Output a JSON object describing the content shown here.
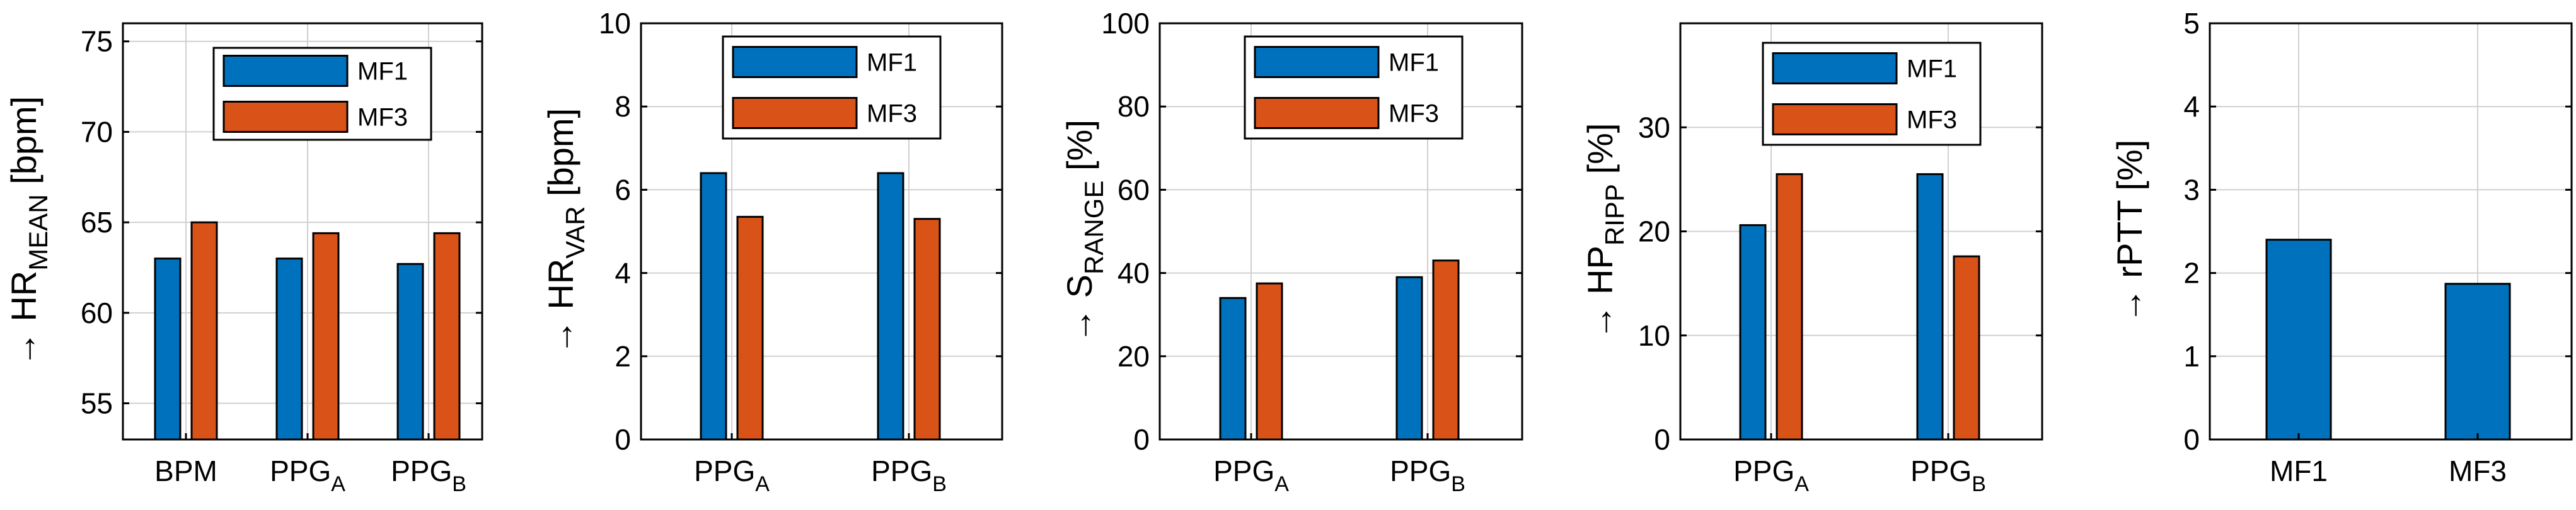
{
  "colors": {
    "MF1": "#0072BD",
    "MF3": "#D95319"
  },
  "chart_data": [
    {
      "type": "bar",
      "ylabel": {
        "prefix": "→ HR",
        "sub": "MEAN",
        "suffix": " [bpm]"
      },
      "ylim": [
        53,
        76
      ],
      "yticks": [
        55,
        60,
        65,
        70,
        75
      ],
      "categories": [
        {
          "main": "BPM",
          "sub": ""
        },
        {
          "main": "PPG",
          "sub": "A"
        },
        {
          "main": "PPG",
          "sub": "B"
        }
      ],
      "series": [
        {
          "name": "MF1",
          "values": [
            63.0,
            63.0,
            62.7
          ]
        },
        {
          "name": "MF3",
          "values": [
            65.0,
            64.4,
            64.4
          ]
        }
      ],
      "legend": [
        "MF1",
        "MF3"
      ],
      "grid": true,
      "legend_location": "top-right"
    },
    {
      "type": "bar",
      "ylabel": {
        "prefix": "→ HR",
        "sub": "VAR",
        "suffix": " [bpm]"
      },
      "ylim": [
        0,
        10
      ],
      "yticks": [
        0,
        2,
        4,
        6,
        8,
        10
      ],
      "categories": [
        {
          "main": "PPG",
          "sub": "A"
        },
        {
          "main": "PPG",
          "sub": "B"
        }
      ],
      "series": [
        {
          "name": "MF1",
          "values": [
            6.4,
            6.4
          ]
        },
        {
          "name": "MF3",
          "values": [
            5.35,
            5.3
          ]
        }
      ],
      "legend": [
        "MF1",
        "MF3"
      ],
      "grid": true,
      "legend_location": "top-right"
    },
    {
      "type": "bar",
      "ylabel": {
        "prefix": "→ S",
        "sub": "RANGE",
        "suffix": " [%]"
      },
      "ylim": [
        0,
        100
      ],
      "yticks": [
        0,
        20,
        40,
        60,
        80,
        100
      ],
      "categories": [
        {
          "main": "PPG",
          "sub": "A"
        },
        {
          "main": "PPG",
          "sub": "B"
        }
      ],
      "series": [
        {
          "name": "MF1",
          "values": [
            34,
            39
          ]
        },
        {
          "name": "MF3",
          "values": [
            37.5,
            43
          ]
        }
      ],
      "legend": [
        "MF1",
        "MF3"
      ],
      "grid": true,
      "legend_location": "top-right"
    },
    {
      "type": "bar",
      "ylabel": {
        "prefix": "→ HP",
        "sub": "RIPP",
        "suffix": " [%]"
      },
      "ylim": [
        0,
        40
      ],
      "yticks": [
        0,
        10,
        20,
        30
      ],
      "categories": [
        {
          "main": "PPG",
          "sub": "A"
        },
        {
          "main": "PPG",
          "sub": "B"
        }
      ],
      "series": [
        {
          "name": "MF1",
          "values": [
            20.6,
            25.5
          ]
        },
        {
          "name": "MF3",
          "values": [
            25.5,
            17.6
          ]
        }
      ],
      "legend": [
        "MF1",
        "MF3"
      ],
      "grid": true,
      "legend_location": "top-right"
    },
    {
      "type": "bar",
      "ylabel": {
        "prefix": "→ rPTT",
        "sub": "",
        "suffix": " [%]"
      },
      "ylim": [
        0,
        5
      ],
      "yticks": [
        0,
        1,
        2,
        3,
        4,
        5
      ],
      "categories": [
        {
          "main": "MF1",
          "sub": ""
        },
        {
          "main": "MF3",
          "sub": ""
        }
      ],
      "series": [
        {
          "name": "rPTT",
          "values": [
            2.4,
            1.87
          ]
        }
      ],
      "legend": [],
      "grid": true,
      "legend_location": ""
    }
  ]
}
